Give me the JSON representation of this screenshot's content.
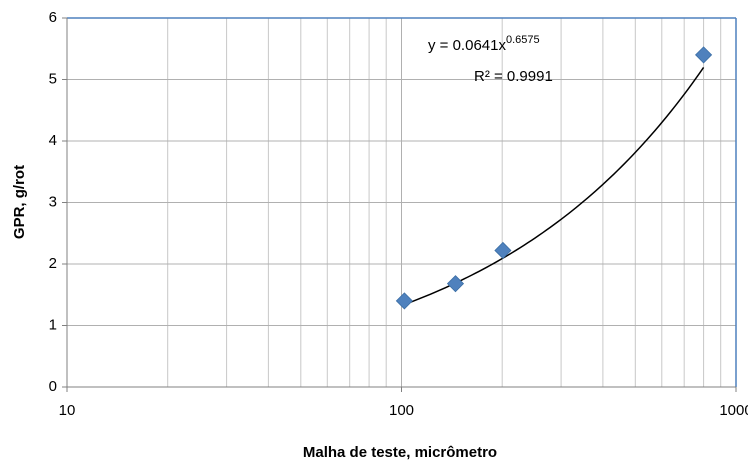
{
  "chart_data": {
    "type": "scatter",
    "x_label": "Malha de teste, micrômetro",
    "y_label": "GPR, g/rot",
    "series": [
      {
        "name": "GPR",
        "color": "#4f81bd",
        "x": [
          102,
          145,
          201,
          800
        ],
        "values": [
          1.4,
          1.68,
          2.22,
          5.4
        ]
      }
    ],
    "xlim": [
      10,
      1000
    ],
    "xticks": [
      10,
      100,
      1000
    ],
    "xlog": true,
    "ylim": [
      0,
      6
    ],
    "yticks": [
      0,
      1,
      2,
      3,
      4,
      5,
      6
    ],
    "grid": true,
    "minor_grid": true,
    "trendline": {
      "type": "power",
      "coefficient": 0.0641,
      "exponent": 0.6575,
      "color": "#000000"
    },
    "annotations": {
      "equation": "y = 0.0641x",
      "equation_exponent": "0.6575",
      "r_squared": "R² = 0.9991"
    }
  }
}
